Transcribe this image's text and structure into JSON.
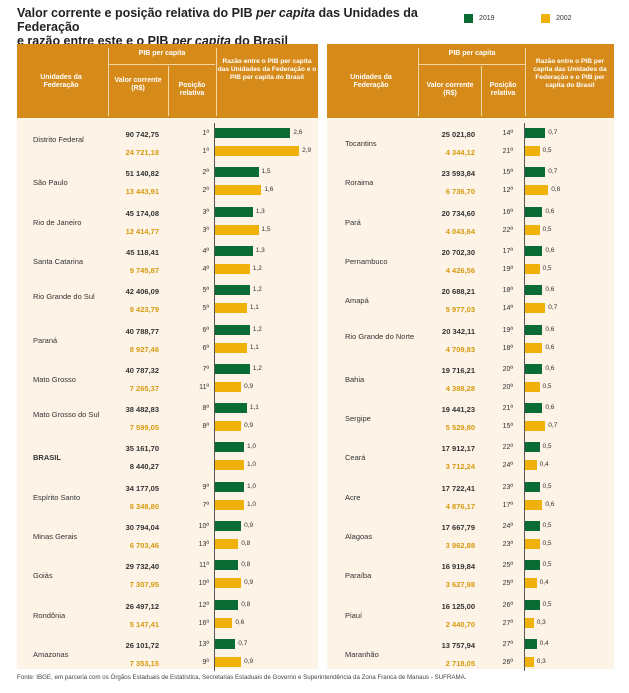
{
  "title_parts": [
    "Valor corrente e posição relativa do PIB ",
    "per capita",
    " das Unidades da Federação",
    "e razão entre este e o PIB ",
    "per capita",
    " do Brasil"
  ],
  "legend": [
    {
      "label": "2019",
      "color": "#0a6b35"
    },
    {
      "label": "2002",
      "color": "#f0b20a"
    }
  ],
  "headers": {
    "uf": "Unidades da Federação",
    "pib": "PIB per capita",
    "valor_left": "Valor corrente (R$)",
    "valor_right": "Valor corrente (R$)",
    "posicao": "Posição relativa",
    "razao_left": "Razão entre o PIB per capita das Unidades da Federação e o PIB per capita do Brasil",
    "razao_right": "Razão entre o PIB per capita das Unidades da Federação e o PIB per capita do Brasil"
  },
  "footer": "Fonte: IBGE, em parceria com os Órgãos Estaduais de Estatística, Secretarias Estaduais de Governo e Superintendência da Zona Franca de Manaus - SUFRAMA.",
  "chart_data": {
    "type": "bar",
    "orientation": "horizontal",
    "series_colors": {
      "2019": "#0a6b35",
      "2002": "#f0b20a"
    },
    "left": [
      {
        "uf": "Distrito Federal",
        "v2019": "90 742,75",
        "p2019": "1ª",
        "r2019": 2.6,
        "v2002": "24 721,18",
        "p2002": "1ª",
        "r2002": 2.9
      },
      {
        "uf": "São Paulo",
        "v2019": "51 140,82",
        "p2019": "2ª",
        "r2019": 1.5,
        "v2002": "13 443,91",
        "p2002": "2ª",
        "r2002": 1.6
      },
      {
        "uf": "Rio de Janeiro",
        "v2019": "45 174,08",
        "p2019": "3ª",
        "r2019": 1.3,
        "v2002": "12 414,77",
        "p2002": "3ª",
        "r2002": 1.5
      },
      {
        "uf": "Santa Catarina",
        "v2019": "45 118,41",
        "p2019": "4ª",
        "r2019": 1.3,
        "v2002": "9 745,87",
        "p2002": "4ª",
        "r2002": 1.2
      },
      {
        "uf": "Rio Grande do Sul",
        "v2019": "42 406,09",
        "p2019": "5ª",
        "r2019": 1.2,
        "v2002": "9 423,79",
        "p2002": "5ª",
        "r2002": 1.1
      },
      {
        "uf": "Paraná",
        "v2019": "40 788,77",
        "p2019": "6ª",
        "r2019": 1.2,
        "v2002": "8 927,46",
        "p2002": "6ª",
        "r2002": 1.1
      },
      {
        "uf": "Mato Grosso",
        "v2019": "40 787,32",
        "p2019": "7ª",
        "r2019": 1.2,
        "v2002": "7 265,37",
        "p2002": "11ª",
        "r2002": 0.9
      },
      {
        "uf": "Mato Grosso do Sul",
        "v2019": "38 482,83",
        "p2019": "8ª",
        "r2019": 1.1,
        "v2002": "7 599,05",
        "p2002": "8ª",
        "r2002": 0.9
      },
      {
        "uf": "BRASIL",
        "v2019": "35 161,70",
        "p2019": "",
        "r2019": 1.0,
        "v2002": "8 440,27",
        "p2002": "",
        "r2002": 1.0,
        "bold": true
      },
      {
        "uf": "Espírito Santo",
        "v2019": "34 177,05",
        "p2019": "9ª",
        "r2019": 1.0,
        "v2002": "8 348,80",
        "p2002": "7ª",
        "r2002": 1.0
      },
      {
        "uf": "Minas Gerais",
        "v2019": "30 794,04",
        "p2019": "10ª",
        "r2019": 0.9,
        "v2002": "6 703,46",
        "p2002": "13ª",
        "r2002": 0.8
      },
      {
        "uf": "Goiás",
        "v2019": "29 732,40",
        "p2019": "11ª",
        "r2019": 0.8,
        "v2002": "7 307,95",
        "p2002": "10ª",
        "r2002": 0.9
      },
      {
        "uf": "Rondônia",
        "v2019": "26 497,12",
        "p2019": "12ª",
        "r2019": 0.8,
        "v2002": "5 147,41",
        "p2002": "16ª",
        "r2002": 0.6
      },
      {
        "uf": "Amazonas",
        "v2019": "26 101,72",
        "p2019": "13ª",
        "r2019": 0.7,
        "v2002": "7 353,15",
        "p2002": "9ª",
        "r2002": 0.9
      }
    ],
    "right": [
      {
        "uf": "Tocantins",
        "v2019": "25 021,80",
        "p2019": "14ª",
        "r2019": 0.7,
        "v2002": "4 344,12",
        "p2002": "21ª",
        "r2002": 0.5
      },
      {
        "uf": "Roraima",
        "v2019": "23 593,84",
        "p2019": "15ª",
        "r2019": 0.7,
        "v2002": "6 736,70",
        "p2002": "12ª",
        "r2002": 0.8
      },
      {
        "uf": "Pará",
        "v2019": "20 734,60",
        "p2019": "16ª",
        "r2019": 0.6,
        "v2002": "4 043,64",
        "p2002": "22ª",
        "r2002": 0.5
      },
      {
        "uf": "Pernambuco",
        "v2019": "20 702,30",
        "p2019": "17ª",
        "r2019": 0.6,
        "v2002": "4 426,56",
        "p2002": "19ª",
        "r2002": 0.5
      },
      {
        "uf": "Amapá",
        "v2019": "20 688,21",
        "p2019": "18ª",
        "r2019": 0.6,
        "v2002": "5 977,03",
        "p2002": "14ª",
        "r2002": 0.7
      },
      {
        "uf": "Rio Grande do Norte",
        "v2019": "20 342,11",
        "p2019": "19ª",
        "r2019": 0.6,
        "v2002": "4 709,83",
        "p2002": "18ª",
        "r2002": 0.6
      },
      {
        "uf": "Bahia",
        "v2019": "19 716,21",
        "p2019": "20ª",
        "r2019": 0.6,
        "v2002": "4 388,28",
        "p2002": "20ª",
        "r2002": 0.5
      },
      {
        "uf": "Sergipe",
        "v2019": "19 441,23",
        "p2019": "21ª",
        "r2019": 0.6,
        "v2002": "5 529,80",
        "p2002": "15ª",
        "r2002": 0.7
      },
      {
        "uf": "Ceará",
        "v2019": "17 912,17",
        "p2019": "22ª",
        "r2019": 0.5,
        "v2002": "3 712,24",
        "p2002": "24ª",
        "r2002": 0.4
      },
      {
        "uf": "Acre",
        "v2019": "17 722,41",
        "p2019": "23ª",
        "r2019": 0.5,
        "v2002": "4 876,17",
        "p2002": "17ª",
        "r2002": 0.6
      },
      {
        "uf": "Alagoas",
        "v2019": "17 667,79",
        "p2019": "24ª",
        "r2019": 0.5,
        "v2002": "3 962,88",
        "p2002": "23ª",
        "r2002": 0.5
      },
      {
        "uf": "Paraíba",
        "v2019": "16 919,84",
        "p2019": "25ª",
        "r2019": 0.5,
        "v2002": "3 627,98",
        "p2002": "25ª",
        "r2002": 0.4
      },
      {
        "uf": "Piauí",
        "v2019": "16 125,00",
        "p2019": "26ª",
        "r2019": 0.5,
        "v2002": "2 440,70",
        "p2002": "27ª",
        "r2002": 0.3
      },
      {
        "uf": "Maranhão",
        "v2019": "13 757,94",
        "p2019": "27ª",
        "r2019": 0.4,
        "v2002": "2 718,05",
        "p2002": "26ª",
        "r2002": 0.3
      }
    ]
  }
}
